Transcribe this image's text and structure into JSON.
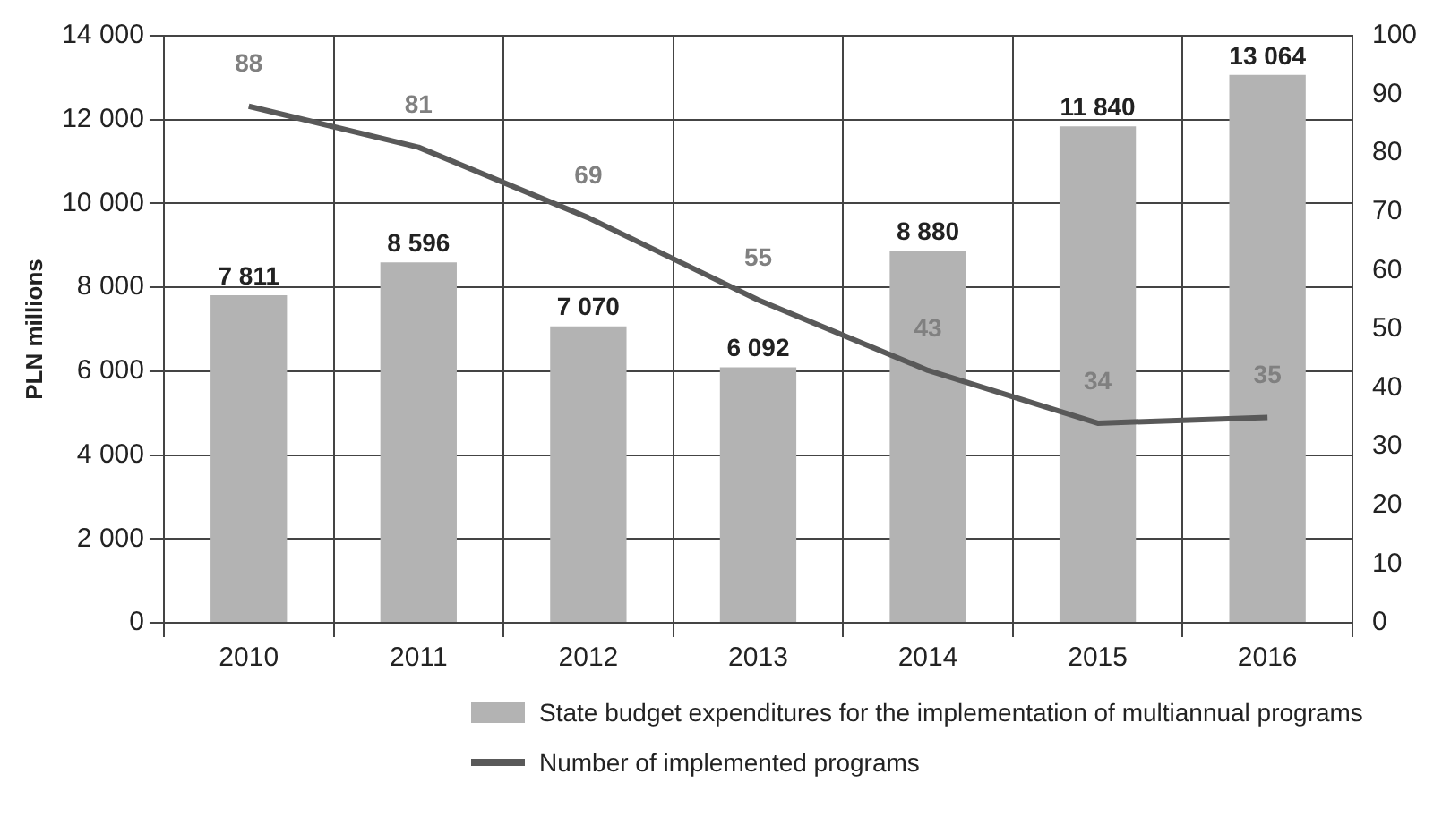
{
  "chart_data": {
    "type": "bar",
    "ylabel": "PLN millions",
    "categories": [
      "2010",
      "2011",
      "2012",
      "2013",
      "2014",
      "2015",
      "2016"
    ],
    "series": [
      {
        "name": "State budget expenditures for the implementation of multiannual programs",
        "color": "#b3b3b3",
        "values": [
          7811,
          8596,
          7070,
          6092,
          8880,
          11840,
          13064
        ],
        "value_labels": [
          "7 811",
          "8 596",
          "7 070",
          "6 092",
          "8 880",
          "11 840",
          "13 064"
        ]
      },
      {
        "name": "Number of implemented programs",
        "type": "line",
        "axis": "y2",
        "color": "#595959",
        "values": [
          88,
          81,
          69,
          55,
          43,
          34,
          35
        ],
        "value_labels": [
          "88",
          "81",
          "69",
          "55",
          "43",
          "34",
          "35"
        ]
      }
    ],
    "ylim": [
      0,
      14000
    ],
    "yticks": [
      {
        "value": 0,
        "label": "0"
      },
      {
        "value": 2000,
        "label": "2 000"
      },
      {
        "value": 4000,
        "label": "4 000"
      },
      {
        "value": 6000,
        "label": "6 000"
      },
      {
        "value": 8000,
        "label": "8 000"
      },
      {
        "value": 10000,
        "label": "10 000"
      },
      {
        "value": 12000,
        "label": "12 000"
      },
      {
        "value": 14000,
        "label": "14 000"
      }
    ],
    "y2lim": [
      0,
      100
    ],
    "y2ticks": [
      0,
      10,
      20,
      30,
      40,
      50,
      60,
      70,
      80,
      90,
      100
    ],
    "grid": true,
    "legend": "bottom",
    "marker": "none"
  }
}
